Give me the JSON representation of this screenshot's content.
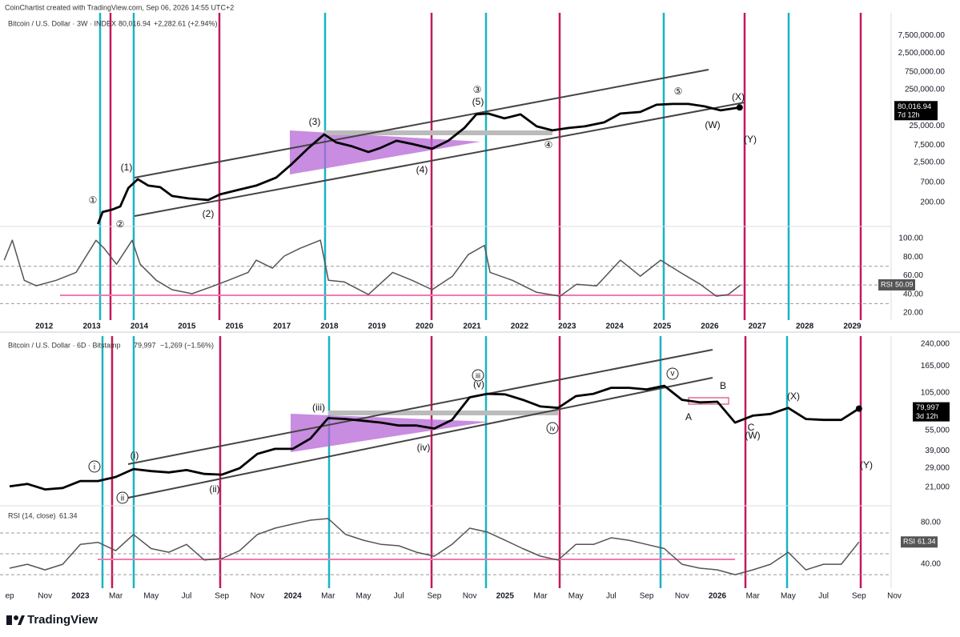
{
  "watermark": "CoinChartist created with TradingView.com, Sep 06, 2026 14:55 UTC+2",
  "footer": "TradingView",
  "chart_data": [
    {
      "type": "line",
      "log": true,
      "series": [
        {
          "name": "Bitcoin / U.S. Dollar · 3W · INDEX",
          "color": "#000000",
          "values": [
            51,
            109,
            127,
            155,
            497,
            865,
            578,
            522,
            300,
            258,
            233,
            331,
            427,
            578,
            957,
            2257,
            6200,
            14620,
            8830,
            6860,
            4820,
            6200,
            9770,
            7980,
            5890,
            9770,
            21900,
            51700,
            54400,
            40200,
            51700,
            24200,
            18800,
            21900,
            24200,
            31200,
            54400,
            60100,
            94700,
            99600,
            99600,
            85700,
            66500,
            80016.94
          ]
        }
      ],
      "x": [
        2013.13,
        2013.23,
        2013.43,
        2013.6,
        2013.77,
        2013.97,
        2014.19,
        2014.44,
        2014.69,
        2015.03,
        2015.45,
        2015.7,
        2016.04,
        2016.46,
        2016.88,
        2017.21,
        2017.56,
        2017.89,
        2018.14,
        2018.48,
        2018.82,
        2019.07,
        2019.41,
        2019.74,
        2020.16,
        2020.5,
        2020.84,
        2021.09,
        2021.34,
        2021.68,
        2022.02,
        2022.36,
        2022.69,
        2023.03,
        2023.37,
        2023.78,
        2024.12,
        2024.54,
        2024.88,
        2025.22,
        2025.55,
        2025.89,
        2026.23,
        2026.63
      ],
      "last_label": "80,016.94",
      "change": "+2,282.61 (+2.94%)",
      "countdown": "7d 12h",
      "xlim": [
        2011.07,
        2029.8
      ],
      "ylim": [
        46,
        15500000
      ],
      "yticks": [
        {
          "value": 7500000,
          "label": "7,500,000.00"
        },
        {
          "value": 2500000,
          "label": "2,500,000.00"
        },
        {
          "value": 750000,
          "label": "750,000.00"
        },
        {
          "value": 250000,
          "label": "250,000.00"
        },
        {
          "value": 25000,
          "label": "25,000.00"
        },
        {
          "value": 7500,
          "label": "7,500.00"
        },
        {
          "value": 2500,
          "label": "2,500.00"
        },
        {
          "value": 700,
          "label": "700.00"
        },
        {
          "value": 200,
          "label": "200.00"
        }
      ],
      "grid": false,
      "annotations": [
        "①",
        "②",
        "(1)",
        "(2)",
        "(3)",
        "(4)",
        "③",
        "(5)",
        "④",
        "⑤",
        "(X)",
        "(W)",
        "(Y)"
      ]
    },
    {
      "type": "line",
      "log": false,
      "series": [
        {
          "name": "RSI",
          "color": "#555555",
          "values": [
            76.6,
            98,
            55,
            49.1,
            55,
            63.5,
            97.9,
            89.4,
            72.2,
            97.9,
            72.2,
            55,
            44.9,
            40.6,
            48.3,
            55,
            63.5,
            76.6,
            68,
            81,
            89.5,
            98,
            55,
            53.3,
            39.7,
            63.5,
            55,
            44.9,
            59.4,
            82.5,
            92.5,
            63.5,
            55,
            42.3,
            38,
            50.8,
            49,
            76.6,
            59.4,
            76.6,
            63.5,
            50.8,
            38,
            39.7,
            50.09
          ]
        }
      ],
      "x": [
        2011.16,
        2011.33,
        2011.58,
        2011.83,
        2012.25,
        2012.67,
        2013.09,
        2013.26,
        2013.52,
        2013.85,
        2014.02,
        2014.36,
        2014.69,
        2015.11,
        2015.53,
        2015.87,
        2016.29,
        2016.46,
        2016.8,
        2017.05,
        2017.39,
        2017.81,
        2017.98,
        2018.31,
        2018.82,
        2019.33,
        2019.74,
        2020.16,
        2020.59,
        2020.92,
        2021.26,
        2021.38,
        2021.85,
        2022.35,
        2022.85,
        2023.2,
        2023.62,
        2024.12,
        2024.54,
        2024.97,
        2025.38,
        2025.8,
        2026.14,
        2026.39,
        2026.65
      ],
      "xlim": [
        2011.07,
        2029.8
      ],
      "ylim": [
        10.6,
        111
      ],
      "yticks": [
        {
          "value": 100,
          "label": "100.00"
        },
        {
          "value": 80,
          "label": "80.00"
        },
        {
          "value": 60,
          "label": "60.00"
        },
        {
          "value": 40,
          "label": "40.00"
        },
        {
          "value": 20,
          "label": "20.00"
        }
      ],
      "levels": [
        70,
        50,
        30
      ],
      "xticks": [
        2012,
        2013,
        2014,
        2015,
        2016,
        2017,
        2018,
        2019,
        2020,
        2021,
        2022,
        2023,
        2024,
        2025,
        2026,
        2027,
        2028,
        2029
      ]
    },
    {
      "type": "line",
      "log": true,
      "series": [
        {
          "name": "Bitcoin / U.S. Dollar · 6D · Bitstamp",
          "color": "#000000",
          "values": [
            21300,
            22200,
            20200,
            20700,
            23300,
            23300,
            25000,
            28600,
            27600,
            27000,
            28100,
            26300,
            26000,
            29000,
            37000,
            40300,
            40300,
            48000,
            68000,
            67000,
            65000,
            63000,
            60000,
            60000,
            57000,
            66000,
            97000,
            103000,
            102000,
            93000,
            83000,
            81000,
            99000,
            103000,
            114000,
            114000,
            111000,
            118000,
            93000,
            89000,
            90000,
            63000,
            71000,
            73000,
            81000,
            67000,
            66000,
            66000,
            79997
          ]
        }
      ],
      "x": [
        "2022-09",
        "2022-10",
        "2022-11",
        "2022-12",
        "2023-01",
        "2023-02",
        "2023-03",
        "2023-04",
        "2023-05",
        "2023-06",
        "2023-07",
        "2023-08",
        "2023-09",
        "2023-10",
        "2023-11",
        "2023-12",
        "2024-01",
        "2024-02",
        "2024-03",
        "2024-04",
        "2024-05",
        "2024-06",
        "2024-07",
        "2024-08",
        "2024-09",
        "2024-10",
        "2024-11",
        "2024-12",
        "2025-01",
        "2025-02",
        "2025-03",
        "2025-04",
        "2025-05",
        "2025-06",
        "2025-07",
        "2025-08",
        "2025-09",
        "2025-10",
        "2025-11",
        "2025-12",
        "2026-01",
        "2026-02",
        "2026-03",
        "2026-04",
        "2026-05",
        "2026-06",
        "2026-07",
        "2026-08",
        "2026-09"
      ],
      "last_label": "79,997",
      "change": "−1,269 (−1.56%)",
      "countdown": "3d 12h",
      "xlim": [
        "2022-09",
        "2026-11"
      ],
      "ylim": [
        15300,
        275000
      ],
      "yticks": [
        {
          "value": 240000,
          "label": "240,000"
        },
        {
          "value": 165000,
          "label": "165,000"
        },
        {
          "value": 105000,
          "label": "105,000"
        },
        {
          "value": 55000,
          "label": "55,000"
        },
        {
          "value": 39000,
          "label": "39,000"
        },
        {
          "value": 29000,
          "label": "29,000"
        },
        {
          "value": 21000,
          "label": "21,000"
        }
      ],
      "grid": false,
      "annotations": [
        "i",
        "(i)",
        "ii",
        "(ii)",
        "(iii)",
        "iii",
        "(v)",
        "(iv)",
        "iv",
        "v",
        "B",
        "A",
        "C",
        "(W)",
        "(X)",
        "(Y)"
      ]
    },
    {
      "type": "line",
      "log": false,
      "series": [
        {
          "name": "RSI (14, close)",
          "color": "#555555",
          "values": [
            36.2,
            40,
            34.6,
            40,
            59,
            61,
            53,
            68.5,
            55,
            51.5,
            59,
            44,
            45.4,
            53,
            68.5,
            74.6,
            78.5,
            82.3,
            83.8,
            68.5,
            63,
            59,
            57.7,
            51.5,
            47.7,
            59,
            74.6,
            70.8,
            63,
            55,
            47.7,
            44,
            59,
            59,
            65.4,
            63,
            59,
            55,
            40,
            36.2,
            34.6,
            30,
            34.6,
            40,
            51.5,
            34.6,
            40,
            40,
            61.34
          ]
        }
      ],
      "x": [
        "2022-09",
        "2022-10",
        "2022-11",
        "2022-12",
        "2023-01",
        "2023-02",
        "2023-03",
        "2023-04",
        "2023-05",
        "2023-06",
        "2023-07",
        "2023-08",
        "2023-09",
        "2023-10",
        "2023-11",
        "2023-12",
        "2024-01",
        "2024-02",
        "2024-03",
        "2024-04",
        "2024-05",
        "2024-06",
        "2024-07",
        "2024-08",
        "2024-09",
        "2024-10",
        "2024-11",
        "2024-12",
        "2025-01",
        "2025-02",
        "2025-03",
        "2025-04",
        "2025-05",
        "2025-06",
        "2025-07",
        "2025-08",
        "2025-09",
        "2025-10",
        "2025-11",
        "2025-12",
        "2026-01",
        "2026-02",
        "2026-03",
        "2026-04",
        "2026-05",
        "2026-06",
        "2026-07",
        "2026-08",
        "2026-09"
      ],
      "axis_tag": "RSI",
      "xlim": [
        "2022-09",
        "2026-11"
      ],
      "ylim": [
        17,
        93.8
      ],
      "yticks": [
        {
          "value": 80,
          "label": "80.00"
        },
        {
          "value": 40,
          "label": "40.00"
        }
      ],
      "levels": [
        70,
        50,
        30
      ],
      "xticks": [
        {
          "value": "2022-09",
          "label": "ep"
        },
        {
          "value": "2022-11",
          "label": "Nov"
        },
        {
          "value": "2023-01",
          "label": "2023"
        },
        {
          "value": "2023-03",
          "label": "Mar"
        },
        {
          "value": "2023-05",
          "label": "May"
        },
        {
          "value": "2023-07",
          "label": "Jul"
        },
        {
          "value": "2023-09",
          "label": "Sep"
        },
        {
          "value": "2023-11",
          "label": "Nov"
        },
        {
          "value": "2024-01",
          "label": "2024"
        },
        {
          "value": "2024-03",
          "label": "Mar"
        },
        {
          "value": "2024-05",
          "label": "May"
        },
        {
          "value": "2024-07",
          "label": "Jul"
        },
        {
          "value": "2024-09",
          "label": "Sep"
        },
        {
          "value": "2024-11",
          "label": "Nov"
        },
        {
          "value": "2025-01",
          "label": "2025"
        },
        {
          "value": "2025-03",
          "label": "Mar"
        },
        {
          "value": "2025-05",
          "label": "May"
        },
        {
          "value": "2025-07",
          "label": "Jul"
        },
        {
          "value": "2025-09",
          "label": "Sep"
        },
        {
          "value": "2025-11",
          "label": "Nov"
        },
        {
          "value": "2026-01",
          "label": "2026"
        },
        {
          "value": "2026-03",
          "label": "Mar"
        },
        {
          "value": "2026-05",
          "label": "May"
        },
        {
          "value": "2026-07",
          "label": "Jul"
        },
        {
          "value": "2026-09",
          "label": "Sep"
        },
        {
          "value": "2026-11",
          "label": "Nov"
        }
      ]
    }
  ]
}
